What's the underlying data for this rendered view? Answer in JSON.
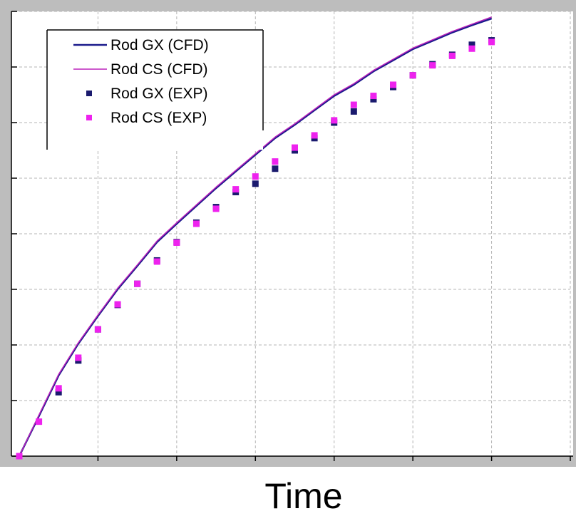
{
  "chart_data": {
    "type": "line",
    "title": "",
    "xlabel": "Time",
    "ylabel": "",
    "xlim": [
      0,
      7
    ],
    "ylim": [
      0,
      8
    ],
    "x_major_ticks": [
      0,
      1,
      2,
      3,
      4,
      5,
      6,
      7
    ],
    "y_major_ticks": [
      0,
      1,
      2,
      3,
      4,
      5,
      6,
      7,
      8
    ],
    "grid": true,
    "grid_style": "dashed",
    "tick_labels_visible": false,
    "legend": {
      "placement": "top-left",
      "entries": [
        "Rod GX (CFD)",
        "Rod CS (CFD)",
        "Rod GX (EXP)",
        "Rod CS (EXP)"
      ]
    },
    "series": [
      {
        "name": "Rod GX (CFD)",
        "kind": "line",
        "color": "#1a1a8c",
        "x": [
          0,
          0.25,
          0.5,
          0.75,
          1.0,
          1.25,
          1.5,
          1.75,
          2.0,
          2.25,
          2.5,
          2.75,
          3.0,
          3.25,
          3.5,
          3.75,
          4.0,
          4.25,
          4.5,
          4.75,
          5.0,
          5.25,
          5.5,
          5.75,
          6.0
        ],
        "y": [
          0,
          0.72,
          1.45,
          2.02,
          2.52,
          3.0,
          3.42,
          3.85,
          4.18,
          4.5,
          4.82,
          5.12,
          5.42,
          5.72,
          5.96,
          6.22,
          6.48,
          6.68,
          6.92,
          7.12,
          7.32,
          7.47,
          7.62,
          7.75,
          7.87
        ]
      },
      {
        "name": "Rod CS (CFD)",
        "kind": "line",
        "color": "#bb22bb",
        "x": [
          0,
          0.25,
          0.5,
          0.75,
          1.0,
          1.25,
          1.5,
          1.75,
          2.0,
          2.25,
          2.5,
          2.75,
          3.0,
          3.25,
          3.5,
          3.75,
          4.0,
          4.25,
          4.5,
          4.75,
          5.0,
          5.25,
          5.5,
          5.75,
          6.0
        ],
        "y": [
          0,
          0.74,
          1.47,
          2.04,
          2.54,
          3.02,
          3.44,
          3.87,
          4.2,
          4.52,
          4.84,
          5.14,
          5.44,
          5.74,
          5.98,
          6.24,
          6.5,
          6.7,
          6.94,
          7.14,
          7.34,
          7.49,
          7.64,
          7.77,
          7.9
        ]
      },
      {
        "name": "Rod GX (EXP)",
        "kind": "scatter",
        "color": "#1a1a6e",
        "x": [
          0.5,
          0.75,
          1.0,
          1.25,
          1.5,
          1.75,
          2.0,
          2.25,
          2.5,
          2.75,
          3.0,
          3.25,
          3.5,
          3.75,
          4.0,
          4.25,
          4.5,
          4.75,
          5.0,
          5.25,
          5.5,
          5.75,
          6.0
        ],
        "y": [
          1.15,
          1.72,
          2.28,
          2.72,
          3.1,
          3.52,
          3.85,
          4.2,
          4.48,
          4.75,
          4.9,
          5.17,
          5.5,
          5.72,
          6.0,
          6.2,
          6.42,
          6.64,
          6.85,
          7.05,
          7.22,
          7.4,
          7.48
        ]
      },
      {
        "name": "Rod CS (EXP)",
        "kind": "scatter",
        "color": "#ee22ee",
        "x": [
          0,
          0.25,
          0.5,
          0.75,
          1.0,
          1.25,
          1.5,
          1.75,
          2.0,
          2.25,
          2.5,
          2.75,
          3.0,
          3.25,
          3.5,
          3.75,
          4.0,
          4.25,
          4.5,
          4.75,
          5.0,
          5.25,
          5.5,
          5.75,
          6.0
        ],
        "y": [
          0,
          0.62,
          1.22,
          1.77,
          2.28,
          2.73,
          3.1,
          3.5,
          3.84,
          4.18,
          4.45,
          4.8,
          5.03,
          5.3,
          5.55,
          5.77,
          6.04,
          6.32,
          6.48,
          6.68,
          6.85,
          7.03,
          7.2,
          7.33,
          7.45
        ]
      }
    ]
  },
  "colors": {
    "frame": "#bdbdbd",
    "plot_background": "#ffffff",
    "grid": "#b4b4b4",
    "axis": "#000000"
  }
}
